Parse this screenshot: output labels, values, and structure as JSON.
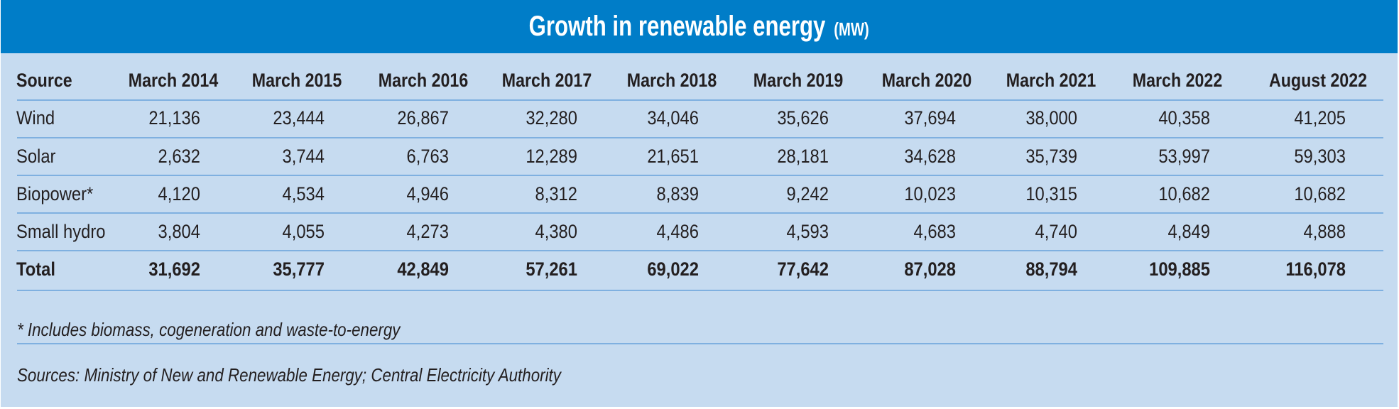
{
  "title": {
    "main": "Growth in renewable energy",
    "unit": "(MW)"
  },
  "table": {
    "columns": [
      "Source",
      "March 2014",
      "March 2015",
      "March 2016",
      "March 2017",
      "March 2018",
      "March 2019",
      "March 2020",
      "March 2021",
      "March 2022",
      "August 2022"
    ],
    "rows": [
      {
        "source": "Wind",
        "values": [
          "21,136",
          "23,444",
          "26,867",
          "32,280",
          "34,046",
          "35,626",
          "37,694",
          "38,000",
          "40,358",
          "41,205"
        ]
      },
      {
        "source": "Solar",
        "values": [
          "2,632",
          "3,744",
          "6,763",
          "12,289",
          "21,651",
          "28,181",
          "34,628",
          "35,739",
          "53,997",
          "59,303"
        ]
      },
      {
        "source": "Biopower*",
        "values": [
          "4,120",
          "4,534",
          "4,946",
          "8,312",
          "8,839",
          "9,242",
          "10,023",
          "10,315",
          "10,682",
          "10,682"
        ]
      },
      {
        "source": "Small hydro",
        "values": [
          "3,804",
          "4,055",
          "4,273",
          "4,380",
          "4,486",
          "4,593",
          "4,683",
          "4,740",
          "4,849",
          "4,888"
        ]
      }
    ],
    "total": {
      "source": "Total",
      "values": [
        "31,692",
        "35,777",
        "42,849",
        "57,261",
        "69,022",
        "77,642",
        "87,028",
        "88,794",
        "109,885",
        "116,078"
      ]
    }
  },
  "footnote": "* Includes biomass, cogeneration and waste-to-energy",
  "sources": "Sources: Ministry of New and Renewable Energy; Central Electricity Authority",
  "colors": {
    "header_band": "#007dc8",
    "background": "#c6dbf0",
    "rule": "#7fb0e0",
    "text": "#231f20"
  }
}
